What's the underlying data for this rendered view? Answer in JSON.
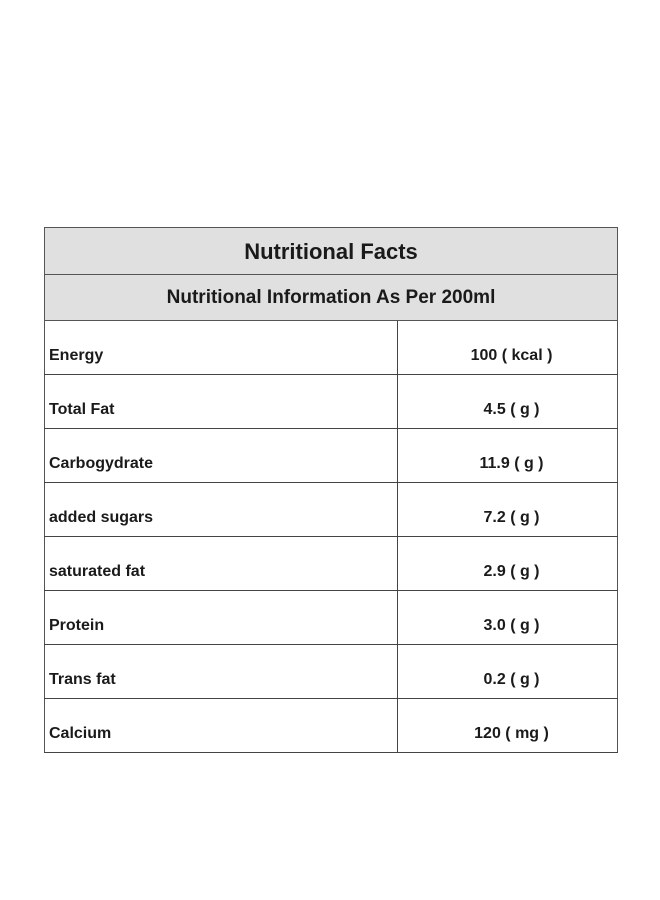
{
  "table": {
    "title": "Nutritional Facts",
    "subtitle": "Nutritional Information As Per 200ml",
    "rows": [
      {
        "name": "Energy",
        "value": "100 ( kcal )"
      },
      {
        "name": "Total Fat",
        "value": "4.5 ( g )"
      },
      {
        "name": "Carbogydrate",
        "value": "11.9 ( g )"
      },
      {
        "name": "added sugars",
        "value": "7.2 ( g )"
      },
      {
        "name": "saturated fat",
        "value": "2.9 ( g )"
      },
      {
        "name": "Protein",
        "value": "3.0 ( g )"
      },
      {
        "name": "Trans fat",
        "value": "0.2 ( g )"
      },
      {
        "name": "Calcium",
        "value": "120 ( mg )"
      }
    ]
  },
  "colors": {
    "header_background": "#e0e0e0",
    "border": "#555555",
    "text": "#1a1a1a"
  }
}
